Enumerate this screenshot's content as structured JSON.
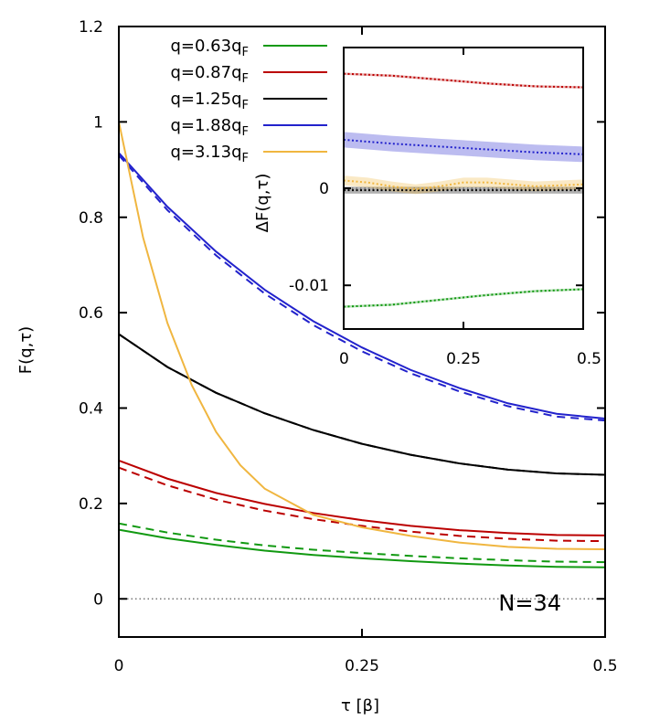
{
  "chart_data": [
    {
      "type": "line",
      "panel": "main",
      "xlabel": "τ [β]",
      "ylabel": "F(q,τ)",
      "xlim": [
        0,
        0.5
      ],
      "ylim": [
        -0.08,
        1.2
      ],
      "xticks": [
        0,
        0.25,
        0.5
      ],
      "xtick_labels": [
        "0",
        "0.25",
        "0.5"
      ],
      "yticks": [
        0,
        0.2,
        0.4,
        0.6,
        0.8,
        1.0,
        1.2
      ],
      "ytick_labels": [
        "0",
        "0.2",
        "0.4",
        "0.6",
        "0.8",
        "1",
        "1.2"
      ],
      "annotation": "N=34",
      "zero_line": true,
      "series": [
        {
          "name": "q=0.63",
          "sub": "F",
          "color": "#119911",
          "solid": {
            "x": [
              0,
              0.05,
              0.1,
              0.15,
              0.2,
              0.25,
              0.3,
              0.35,
              0.4,
              0.45,
              0.5
            ],
            "y": [
              0.145,
              0.127,
              0.113,
              0.101,
              0.092,
              0.085,
              0.079,
              0.074,
              0.07,
              0.067,
              0.066
            ]
          },
          "dashed": {
            "x": [
              0,
              0.05,
              0.1,
              0.15,
              0.2,
              0.25,
              0.3,
              0.35,
              0.4,
              0.45,
              0.5
            ],
            "y": [
              0.158,
              0.139,
              0.124,
              0.112,
              0.103,
              0.096,
              0.09,
              0.085,
              0.081,
              0.078,
              0.077
            ]
          }
        },
        {
          "name": "q=0.87",
          "sub": "F",
          "color": "#bb0000",
          "solid": {
            "x": [
              0,
              0.05,
              0.1,
              0.15,
              0.2,
              0.25,
              0.3,
              0.35,
              0.4,
              0.45,
              0.5
            ],
            "y": [
              0.29,
              0.252,
              0.222,
              0.199,
              0.18,
              0.165,
              0.153,
              0.144,
              0.138,
              0.134,
              0.133
            ]
          },
          "dashed": {
            "x": [
              0,
              0.05,
              0.1,
              0.15,
              0.2,
              0.25,
              0.3,
              0.35,
              0.4,
              0.45,
              0.5
            ],
            "y": [
              0.275,
              0.238,
              0.208,
              0.185,
              0.167,
              0.153,
              0.141,
              0.132,
              0.126,
              0.122,
              0.121
            ]
          }
        },
        {
          "name": "q=1.25",
          "sub": "F",
          "color": "#000000",
          "solid": {
            "x": [
              0,
              0.05,
              0.1,
              0.15,
              0.2,
              0.25,
              0.3,
              0.35,
              0.4,
              0.45,
              0.5
            ],
            "y": [
              0.555,
              0.486,
              0.432,
              0.389,
              0.354,
              0.325,
              0.302,
              0.284,
              0.271,
              0.263,
              0.26
            ]
          },
          "dashed": {
            "x": [
              0,
              0.05,
              0.1,
              0.15,
              0.2,
              0.25,
              0.3,
              0.35,
              0.4,
              0.45,
              0.5
            ],
            "y": [
              0.555,
              0.486,
              0.432,
              0.389,
              0.354,
              0.325,
              0.302,
              0.284,
              0.271,
              0.263,
              0.26
            ]
          }
        },
        {
          "name": "q=1.88",
          "sub": "F",
          "color": "#2222cc",
          "solid": {
            "x": [
              0,
              0.05,
              0.1,
              0.15,
              0.2,
              0.25,
              0.3,
              0.35,
              0.4,
              0.45,
              0.5
            ],
            "y": [
              0.935,
              0.822,
              0.728,
              0.648,
              0.582,
              0.527,
              0.48,
              0.442,
              0.41,
              0.388,
              0.378
            ]
          },
          "dashed": {
            "x": [
              0,
              0.05,
              0.1,
              0.15,
              0.2,
              0.25,
              0.3,
              0.35,
              0.4,
              0.45,
              0.5
            ],
            "y": [
              0.93,
              0.815,
              0.72,
              0.64,
              0.574,
              0.519,
              0.473,
              0.435,
              0.404,
              0.382,
              0.374
            ]
          }
        },
        {
          "name": "q=3.13",
          "sub": "F",
          "color": "#f0b640",
          "solid": {
            "x": [
              0,
              0.025,
              0.05,
              0.075,
              0.1,
              0.125,
              0.15,
              0.2,
              0.25,
              0.3,
              0.35,
              0.4,
              0.45,
              0.5
            ],
            "y": [
              1.0,
              0.757,
              0.578,
              0.448,
              0.35,
              0.28,
              0.231,
              0.176,
              0.15,
              0.132,
              0.118,
              0.109,
              0.105,
              0.104
            ]
          }
        }
      ]
    },
    {
      "type": "line",
      "panel": "inset",
      "ylabel": "ΔF(q,τ)",
      "xlim": [
        0,
        0.5
      ],
      "ylim": [
        -0.0145,
        0.0145
      ],
      "xticks": [
        0,
        0.25,
        0.5
      ],
      "xtick_labels": [
        "0",
        "0.25",
        "0.5"
      ],
      "yticks": [
        0,
        -0.01
      ],
      "ytick_labels": [
        "0",
        "-0.01"
      ],
      "zero_line": true,
      "series": [
        {
          "name": "q=0.63",
          "color": "#119911",
          "x": [
            0,
            0.1,
            0.2,
            0.3,
            0.4,
            0.5
          ],
          "y": [
            -0.0122,
            -0.012,
            -0.0115,
            -0.011,
            -0.0106,
            -0.0104
          ],
          "band": 0.00012
        },
        {
          "name": "q=0.87",
          "color": "#bb0000",
          "x": [
            0,
            0.1,
            0.2,
            0.3,
            0.4,
            0.5
          ],
          "y": [
            0.0118,
            0.0116,
            0.0112,
            0.0108,
            0.0105,
            0.0104
          ],
          "band": 0.00012
        },
        {
          "name": "q=1.25",
          "color": "#000000",
          "x": [
            0,
            0.1,
            0.2,
            0.3,
            0.4,
            0.5
          ],
          "y": [
            -0.0002,
            -0.0002,
            -0.0002,
            -0.0002,
            -0.0002,
            -0.0002
          ],
          "band": 0.00035
        },
        {
          "name": "q=1.88",
          "color": "#2222cc",
          "x": [
            0,
            0.1,
            0.2,
            0.3,
            0.4,
            0.5
          ],
          "y": [
            0.005,
            0.0046,
            0.0043,
            0.004,
            0.0037,
            0.0035
          ],
          "band": 0.0008
        },
        {
          "name": "q=3.13",
          "color": "#f0b640",
          "x": [
            0,
            0.05,
            0.1,
            0.15,
            0.2,
            0.25,
            0.3,
            0.35,
            0.4,
            0.45,
            0.5
          ],
          "y": [
            0.0008,
            0.0006,
            0.0002,
            -0.0001,
            0.0002,
            0.0006,
            0.0006,
            0.0004,
            0.0002,
            0.0003,
            0.0004
          ],
          "band": 0.0005
        }
      ]
    }
  ]
}
